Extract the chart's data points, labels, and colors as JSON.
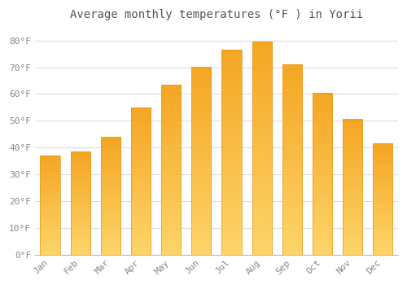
{
  "title": "Average monthly temperatures (°F ) in Yorii",
  "months": [
    "Jan",
    "Feb",
    "Mar",
    "Apr",
    "May",
    "Jun",
    "Jul",
    "Aug",
    "Sep",
    "Oct",
    "Nov",
    "Dec"
  ],
  "values": [
    37,
    38.5,
    44,
    55,
    63.5,
    70,
    76.5,
    79.5,
    71,
    60.5,
    50.5,
    41.5
  ],
  "bar_color_top": "#F5A623",
  "bar_color_bottom": "#F0C040",
  "background_color": "#ffffff",
  "plot_bg_color": "#ffffff",
  "grid_color": "#dddddd",
  "ylim": [
    0,
    85
  ],
  "yticks": [
    0,
    10,
    20,
    30,
    40,
    50,
    60,
    70,
    80
  ],
  "ytick_labels": [
    "0°F",
    "10°F",
    "20°F",
    "30°F",
    "40°F",
    "50°F",
    "60°F",
    "70°F",
    "80°F"
  ],
  "title_fontsize": 10,
  "tick_fontsize": 8,
  "tick_color": "#888888",
  "title_color": "#555555",
  "bar_width": 0.65
}
